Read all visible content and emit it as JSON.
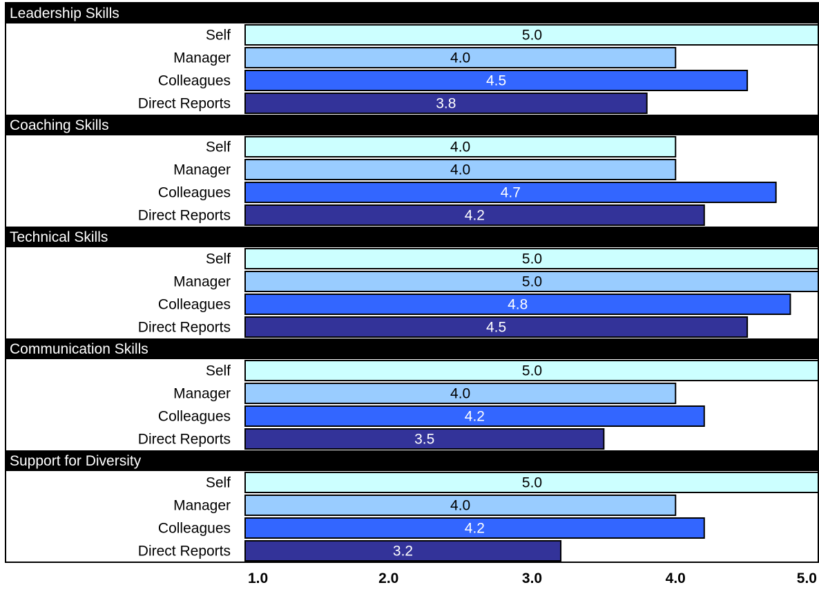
{
  "chart_data": {
    "type": "bar",
    "orientation": "horizontal",
    "grouped": true,
    "xlim": [
      1.0,
      5.0
    ],
    "x_ticks": [
      "1.0",
      "2.0",
      "3.0",
      "4.0",
      "5.0"
    ],
    "grid": false,
    "legend": "none",
    "colors": {
      "Self": "#ccffff",
      "Manager": "#99ccff",
      "Colleagues": "#3366ff",
      "Direct Reports": "#333399",
      "header_bg": "#000000",
      "header_text": "#ffffff"
    },
    "label_colors": {
      "Self": "#000000",
      "Manager": "#000000",
      "Colleagues": "#ffffff",
      "Direct Reports": "#ffffff"
    },
    "groups": [
      {
        "title": "Leadership Skills",
        "bars": [
          {
            "label": "Self",
            "value": 5.0,
            "value_label": "5.0"
          },
          {
            "label": "Manager",
            "value": 4.0,
            "value_label": "4.0"
          },
          {
            "label": "Colleagues",
            "value": 4.5,
            "value_label": "4.5"
          },
          {
            "label": "Direct Reports",
            "value": 3.8,
            "value_label": "3.8"
          }
        ]
      },
      {
        "title": "Coaching Skills",
        "bars": [
          {
            "label": "Self",
            "value": 4.0,
            "value_label": "4.0"
          },
          {
            "label": "Manager",
            "value": 4.0,
            "value_label": "4.0"
          },
          {
            "label": "Colleagues",
            "value": 4.7,
            "value_label": "4.7"
          },
          {
            "label": "Direct Reports",
            "value": 4.2,
            "value_label": "4.2"
          }
        ]
      },
      {
        "title": "Technical Skills",
        "bars": [
          {
            "label": "Self",
            "value": 5.0,
            "value_label": "5.0"
          },
          {
            "label": "Manager",
            "value": 5.0,
            "value_label": "5.0"
          },
          {
            "label": "Colleagues",
            "value": 4.8,
            "value_label": "4.8"
          },
          {
            "label": "Direct Reports",
            "value": 4.5,
            "value_label": "4.5"
          }
        ]
      },
      {
        "title": "Communication Skills",
        "bars": [
          {
            "label": "Self",
            "value": 5.0,
            "value_label": "5.0"
          },
          {
            "label": "Manager",
            "value": 4.0,
            "value_label": "4.0"
          },
          {
            "label": "Colleagues",
            "value": 4.2,
            "value_label": "4.2"
          },
          {
            "label": "Direct Reports",
            "value": 3.5,
            "value_label": "3.5"
          }
        ]
      },
      {
        "title": "Support for Diversity",
        "bars": [
          {
            "label": "Self",
            "value": 5.0,
            "value_label": "5.0"
          },
          {
            "label": "Manager",
            "value": 4.0,
            "value_label": "4.0"
          },
          {
            "label": "Colleagues",
            "value": 4.2,
            "value_label": "4.2"
          },
          {
            "label": "Direct Reports",
            "value": 3.2,
            "value_label": "3.2"
          }
        ]
      }
    ]
  }
}
